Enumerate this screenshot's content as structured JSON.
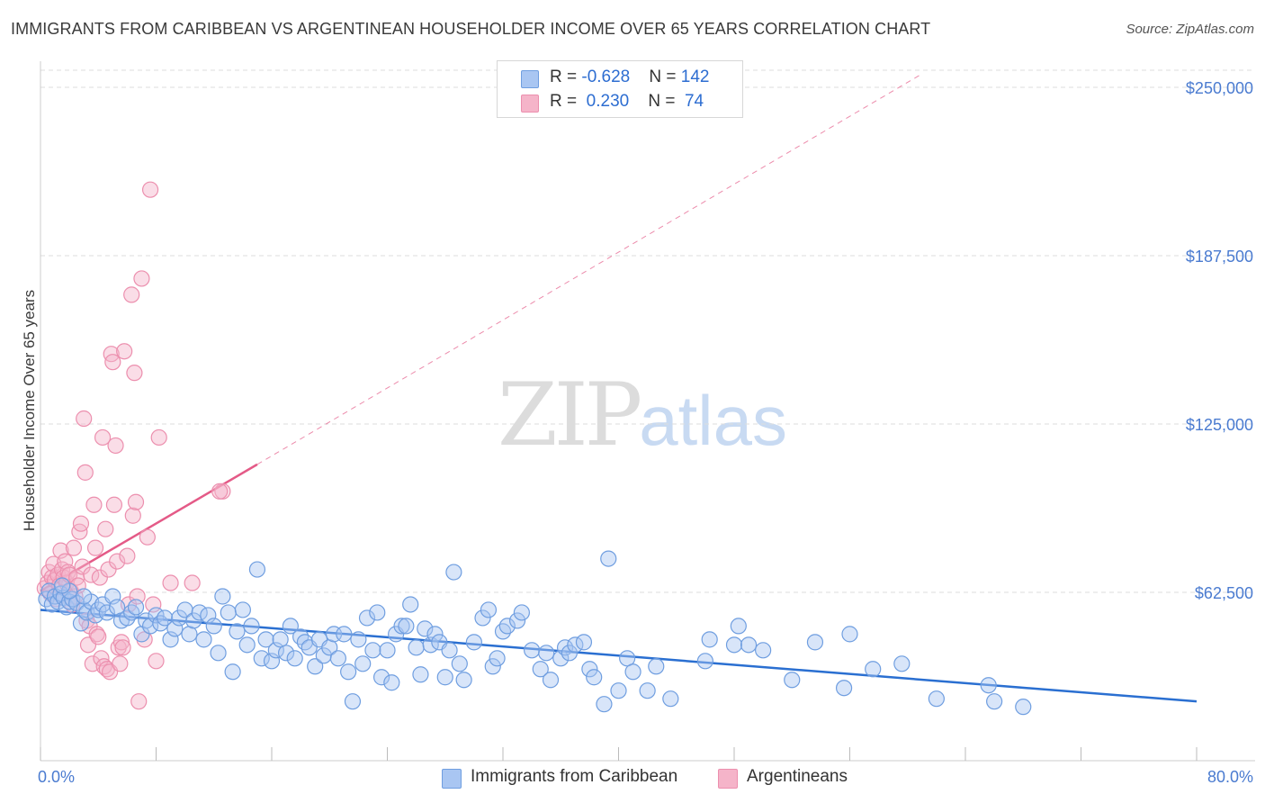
{
  "header": {
    "title": "IMMIGRANTS FROM CARIBBEAN VS ARGENTINEAN HOUSEHOLDER INCOME OVER 65 YEARS CORRELATION CHART",
    "source": "Source: ZipAtlas.com"
  },
  "watermark": {
    "zip": "ZIP",
    "atlas": "atlas"
  },
  "legend": {
    "series1": {
      "r_label": "R = ",
      "r_value": "-0.628",
      "n_label": "N = ",
      "n_value": "142",
      "color": "#a9c6f2"
    },
    "series2": {
      "r_label": "R = ",
      "r_value": " 0.230",
      "n_label": "N = ",
      "n_value": " 74",
      "color": "#f5b4c9"
    }
  },
  "bottom_legend": {
    "item1": "Immigrants from Caribbean",
    "item2": "Argentineans"
  },
  "colors": {
    "blue_fill": "#a9c6f2",
    "blue_stroke": "#6f9ee0",
    "blue_line": "#2a6fd1",
    "pink_fill": "#f5b4c9",
    "pink_stroke": "#ec8fae",
    "pink_line": "#e45a87",
    "grid": "#dddddd",
    "axis_text": "#4a7bd0"
  },
  "chart_data": {
    "type": "scatter",
    "title": "IMMIGRANTS FROM CARIBBEAN VS ARGENTINEAN HOUSEHOLDER INCOME OVER 65 YEARS CORRELATION CHART",
    "xlabel": "",
    "ylabel": "Householder Income Over 65 years",
    "xlim": [
      0,
      80
    ],
    "ylim": [
      0,
      265000
    ],
    "x_tick_labels": [
      "0.0%",
      "80.0%"
    ],
    "y_ticks": [
      62500,
      125000,
      187500,
      250000
    ],
    "y_tick_labels": [
      "$62,500",
      "$125,000",
      "$187,500",
      "$250,000"
    ],
    "grid": true,
    "legend_position": "top-center",
    "series": [
      {
        "name": "Immigrants from Caribbean",
        "R": -0.628,
        "N": 142,
        "trend": {
          "x": [
            0,
            80
          ],
          "y": [
            56000,
            22000
          ]
        },
        "points": [
          [
            0.4,
            60000
          ],
          [
            0.6,
            63000
          ],
          [
            0.8,
            58000
          ],
          [
            1.0,
            61000
          ],
          [
            1.2,
            59000
          ],
          [
            1.4,
            62000
          ],
          [
            1.6,
            60500
          ],
          [
            1.8,
            57000
          ],
          [
            2.0,
            59000
          ],
          [
            2.2,
            60000
          ],
          [
            2.5,
            58500
          ],
          [
            2.8,
            51000
          ],
          [
            3.0,
            56000
          ],
          [
            3.2,
            55000
          ],
          [
            3.5,
            59000
          ],
          [
            3.8,
            54000
          ],
          [
            4.0,
            56000
          ],
          [
            4.3,
            58000
          ],
          [
            4.6,
            55000
          ],
          [
            5.0,
            61000
          ],
          [
            5.3,
            57000
          ],
          [
            5.6,
            52000
          ],
          [
            6.0,
            53000
          ],
          [
            6.3,
            55000
          ],
          [
            6.6,
            57000
          ],
          [
            7.0,
            47000
          ],
          [
            7.3,
            52000
          ],
          [
            7.6,
            50000
          ],
          [
            8.0,
            54000
          ],
          [
            8.3,
            51000
          ],
          [
            8.6,
            53000
          ],
          [
            9.0,
            45000
          ],
          [
            9.3,
            49000
          ],
          [
            9.6,
            53000
          ],
          [
            10.0,
            56000
          ],
          [
            10.3,
            47000
          ],
          [
            10.6,
            52000
          ],
          [
            11.0,
            55000
          ],
          [
            11.3,
            45000
          ],
          [
            11.6,
            54000
          ],
          [
            12.0,
            50000
          ],
          [
            12.3,
            40000
          ],
          [
            12.6,
            61000
          ],
          [
            13.0,
            55000
          ],
          [
            13.3,
            33000
          ],
          [
            13.6,
            48000
          ],
          [
            14.0,
            56000
          ],
          [
            14.3,
            43000
          ],
          [
            14.6,
            50000
          ],
          [
            15.0,
            71000
          ],
          [
            15.3,
            38000
          ],
          [
            15.6,
            45000
          ],
          [
            16.0,
            37000
          ],
          [
            16.3,
            41000
          ],
          [
            16.6,
            45000
          ],
          [
            17.0,
            40000
          ],
          [
            17.3,
            50000
          ],
          [
            17.6,
            38000
          ],
          [
            18.0,
            46000
          ],
          [
            18.3,
            44000
          ],
          [
            18.6,
            42000
          ],
          [
            19.0,
            35000
          ],
          [
            19.3,
            45000
          ],
          [
            19.6,
            39000
          ],
          [
            20.0,
            42000
          ],
          [
            20.3,
            47000
          ],
          [
            20.6,
            38000
          ],
          [
            21.0,
            47000
          ],
          [
            21.3,
            33000
          ],
          [
            21.6,
            22000
          ],
          [
            22.0,
            45000
          ],
          [
            22.3,
            36000
          ],
          [
            22.6,
            53000
          ],
          [
            23.0,
            41000
          ],
          [
            23.3,
            55000
          ],
          [
            23.6,
            31000
          ],
          [
            24.0,
            41000
          ],
          [
            24.3,
            29000
          ],
          [
            24.6,
            47000
          ],
          [
            25.0,
            50000
          ],
          [
            25.3,
            50000
          ],
          [
            25.6,
            58000
          ],
          [
            26.0,
            42000
          ],
          [
            26.3,
            32000
          ],
          [
            26.6,
            49000
          ],
          [
            27.0,
            43000
          ],
          [
            27.3,
            47000
          ],
          [
            27.6,
            44000
          ],
          [
            28.0,
            31000
          ],
          [
            28.3,
            41000
          ],
          [
            28.6,
            70000
          ],
          [
            29.0,
            36000
          ],
          [
            29.3,
            30000
          ],
          [
            30.0,
            44000
          ],
          [
            30.6,
            53000
          ],
          [
            31.0,
            56000
          ],
          [
            31.3,
            35000
          ],
          [
            31.6,
            38000
          ],
          [
            32.0,
            48000
          ],
          [
            32.3,
            50000
          ],
          [
            33.0,
            52000
          ],
          [
            33.3,
            55000
          ],
          [
            34.0,
            41000
          ],
          [
            34.6,
            34000
          ],
          [
            35.0,
            40000
          ],
          [
            35.3,
            30000
          ],
          [
            36.0,
            38000
          ],
          [
            36.3,
            42000
          ],
          [
            36.6,
            40000
          ],
          [
            37.0,
            43000
          ],
          [
            37.6,
            44000
          ],
          [
            38.0,
            34000
          ],
          [
            38.3,
            31000
          ],
          [
            39.0,
            21000
          ],
          [
            39.3,
            75000
          ],
          [
            40.0,
            26000
          ],
          [
            40.6,
            38000
          ],
          [
            41.0,
            33000
          ],
          [
            42.0,
            26000
          ],
          [
            42.6,
            35000
          ],
          [
            43.6,
            23000
          ],
          [
            46.0,
            37000
          ],
          [
            46.3,
            45000
          ],
          [
            48.0,
            43000
          ],
          [
            48.3,
            50000
          ],
          [
            49.0,
            43000
          ],
          [
            50.0,
            41000
          ],
          [
            52.0,
            30000
          ],
          [
            53.6,
            44000
          ],
          [
            55.6,
            27000
          ],
          [
            56.0,
            47000
          ],
          [
            57.6,
            34000
          ],
          [
            59.6,
            36000
          ],
          [
            62.0,
            23000
          ],
          [
            65.6,
            28000
          ],
          [
            66.0,
            22000
          ],
          [
            68.0,
            20000
          ],
          [
            2.0,
            63000
          ],
          [
            3.0,
            61000
          ],
          [
            1.5,
            65000
          ]
        ]
      },
      {
        "name": "Argentineans",
        "R": 0.23,
        "N": 74,
        "trend": {
          "x": [
            0,
            15
          ],
          "y": [
            63000,
            110000
          ]
        },
        "trend_dashed": {
          "x": [
            15,
            61
          ],
          "y": [
            110000,
            255000
          ]
        },
        "points": [
          [
            0.3,
            64000
          ],
          [
            0.5,
            66000
          ],
          [
            0.6,
            70000
          ],
          [
            0.7,
            62000
          ],
          [
            0.8,
            68000
          ],
          [
            0.9,
            73000
          ],
          [
            1.0,
            67000
          ],
          [
            1.1,
            60000
          ],
          [
            1.2,
            69000
          ],
          [
            1.3,
            65000
          ],
          [
            1.4,
            78000
          ],
          [
            1.5,
            71000
          ],
          [
            1.6,
            68000
          ],
          [
            1.7,
            74000
          ],
          [
            1.8,
            66000
          ],
          [
            1.9,
            70000
          ],
          [
            2.0,
            69000
          ],
          [
            2.1,
            63000
          ],
          [
            2.2,
            58000
          ],
          [
            2.3,
            79000
          ],
          [
            2.4,
            61000
          ],
          [
            2.5,
            68000
          ],
          [
            2.6,
            65000
          ],
          [
            2.7,
            85000
          ],
          [
            2.8,
            88000
          ],
          [
            2.9,
            72000
          ],
          [
            3.0,
            127000
          ],
          [
            3.1,
            107000
          ],
          [
            3.2,
            52000
          ],
          [
            3.3,
            43000
          ],
          [
            3.4,
            50000
          ],
          [
            3.5,
            69000
          ],
          [
            3.6,
            36000
          ],
          [
            3.7,
            95000
          ],
          [
            3.8,
            79000
          ],
          [
            3.9,
            47000
          ],
          [
            4.0,
            46000
          ],
          [
            4.1,
            68000
          ],
          [
            4.2,
            38000
          ],
          [
            4.3,
            120000
          ],
          [
            4.4,
            35000
          ],
          [
            4.5,
            86000
          ],
          [
            4.6,
            34000
          ],
          [
            4.7,
            71000
          ],
          [
            4.8,
            33000
          ],
          [
            4.9,
            151000
          ],
          [
            5.0,
            148000
          ],
          [
            5.1,
            95000
          ],
          [
            5.2,
            117000
          ],
          [
            5.3,
            74000
          ],
          [
            5.4,
            42000
          ],
          [
            5.5,
            36000
          ],
          [
            5.6,
            44000
          ],
          [
            5.7,
            42000
          ],
          [
            5.8,
            152000
          ],
          [
            6.0,
            76000
          ],
          [
            6.1,
            58000
          ],
          [
            6.3,
            173000
          ],
          [
            6.4,
            91000
          ],
          [
            6.5,
            144000
          ],
          [
            6.6,
            96000
          ],
          [
            6.7,
            61000
          ],
          [
            6.8,
            22000
          ],
          [
            7.0,
            179000
          ],
          [
            7.2,
            45000
          ],
          [
            7.4,
            83000
          ],
          [
            7.6,
            212000
          ],
          [
            7.8,
            58000
          ],
          [
            8.0,
            37000
          ],
          [
            8.2,
            120000
          ],
          [
            9.0,
            66000
          ],
          [
            10.5,
            66000
          ],
          [
            12.6,
            100000
          ],
          [
            12.4,
            100000
          ]
        ]
      }
    ]
  }
}
